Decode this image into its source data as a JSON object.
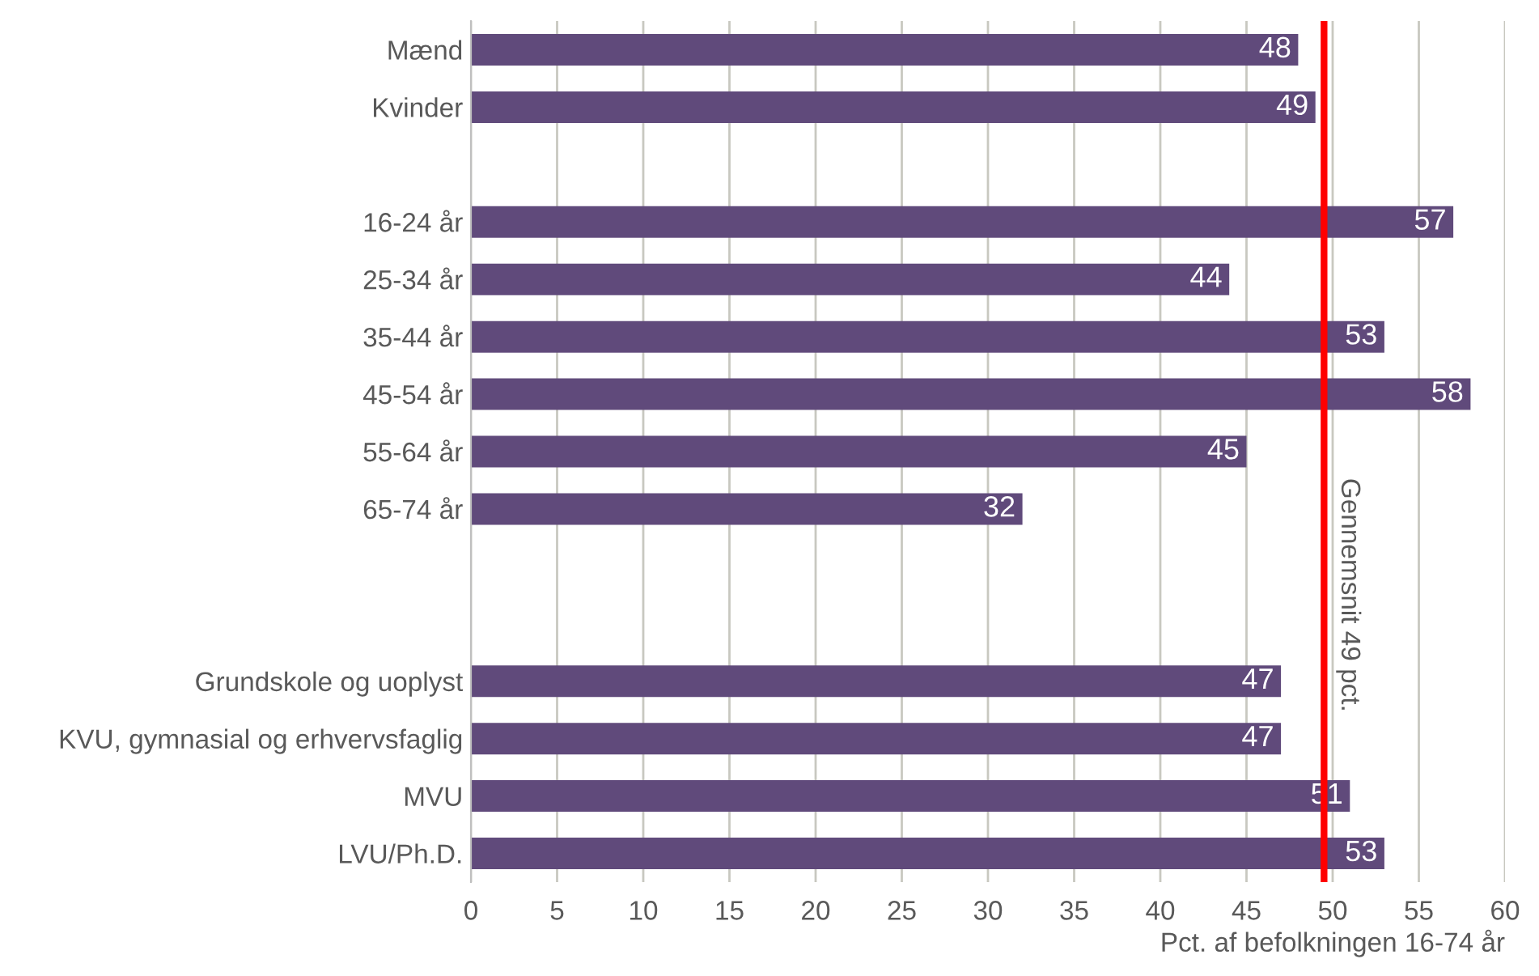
{
  "chart_data": {
    "type": "bar",
    "orientation": "horizontal",
    "categories": [
      "Mænd",
      "Kvinder",
      null,
      "16-24 år",
      "25-34 år",
      "35-44 år",
      "45-54 år",
      "55-64 år",
      "65-74 år",
      null,
      null,
      "Grundskole og uoplyst",
      "KVU, gymnasial og erhvervsfaglig",
      "MVU",
      "LVU/Ph.D."
    ],
    "values": [
      48,
      49,
      null,
      57,
      44,
      53,
      58,
      45,
      32,
      null,
      null,
      47,
      47,
      51,
      53
    ],
    "color": "#604a7b",
    "data_labels": true,
    "xlim": [
      0,
      60
    ],
    "xticks": [
      0,
      5,
      10,
      15,
      20,
      25,
      30,
      35,
      40,
      45,
      50,
      55,
      60
    ],
    "xlabel": "Pct. af befolkningen 16-74 år",
    "grid": "x",
    "ref_lines": [
      {
        "axis": "x",
        "value": 49.5,
        "label": "Gennemsnit 49 pct.",
        "color": "#ff0000"
      }
    ]
  }
}
